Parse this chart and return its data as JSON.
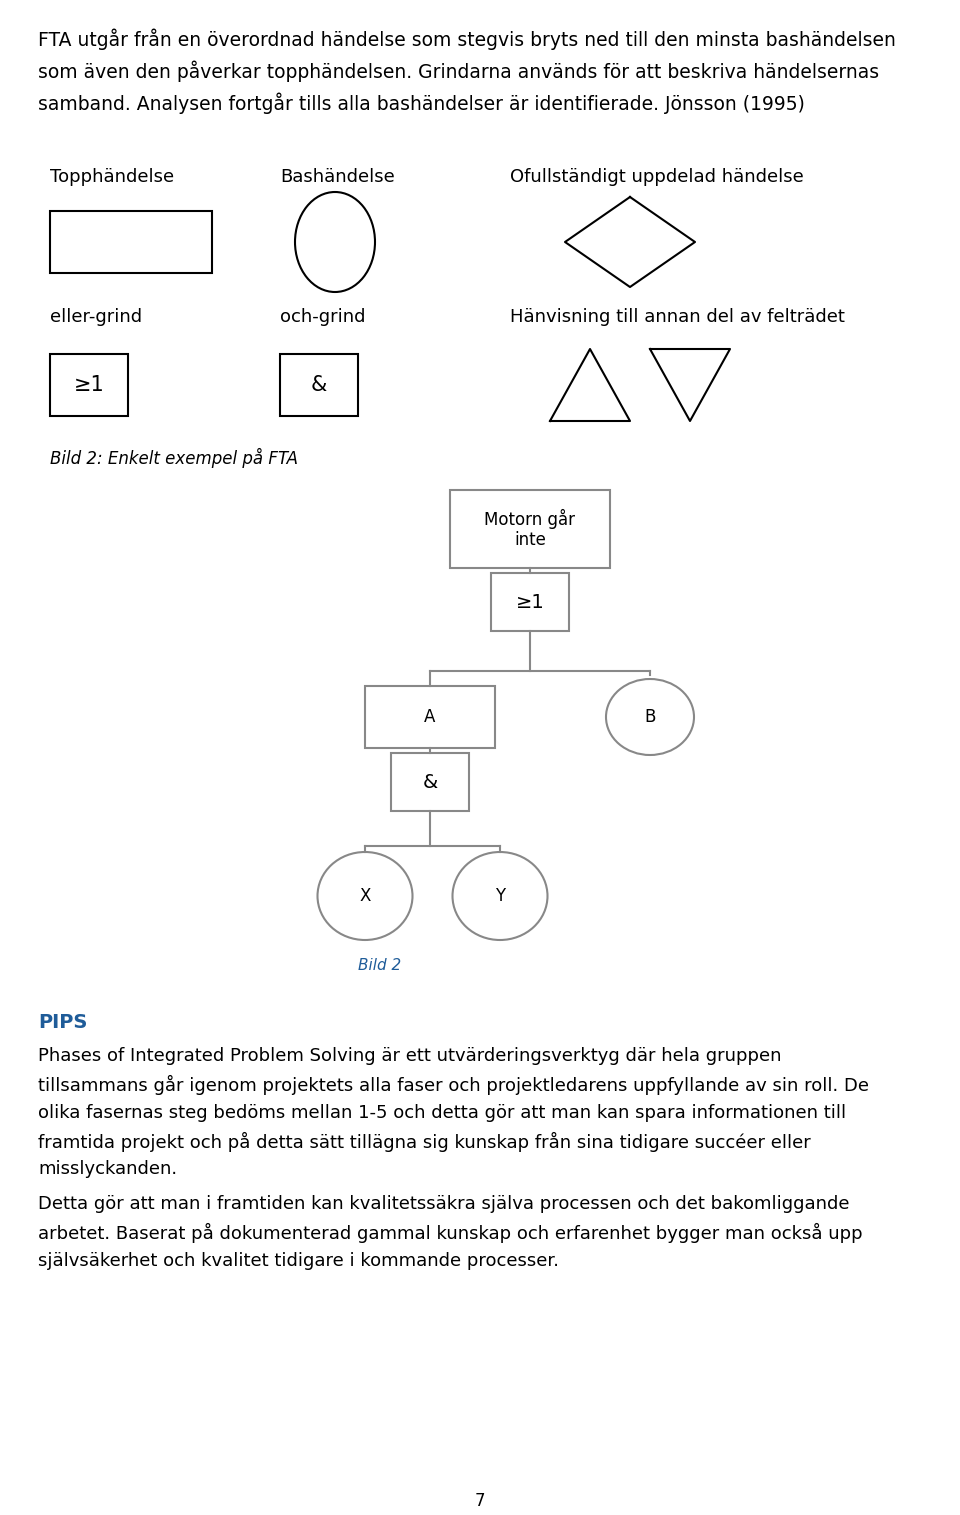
{
  "intro_text_line1": "FTA utgår från en överordnad händelse som stegvis bryts ned till den minsta bashändelsen",
  "intro_text_line2": "som även den påverkar topphändelsen. Grindarna används för att beskriva händelsernas",
  "intro_text_line3": "samband. Analysen fortgår tills alla bashändelser är identifierade. Jönsson (1995)",
  "label_topphändelse": "Topphändelse",
  "label_bashändelse": "Bashändelse",
  "label_ofullständigt": "Ofullständigt uppdelad händelse",
  "label_eller": "eller-grind",
  "label_och": "och-grind",
  "label_hänvisning": "Hänvisning till annan del av felträdet",
  "bild2_caption": "Bild 2: Enkelt exempel på FTA",
  "bild2_label": "Bild 2",
  "tree_top_label": "Motorn går\ninte",
  "tree_or_label": "≥1",
  "tree_and_label": "&",
  "tree_a_label": "A",
  "tree_b_label": "B",
  "tree_x_label": "X",
  "tree_y_label": "Y",
  "pips_title": "PIPS",
  "pips_text1": "Phases of Integrated Problem Solving är ett utvärderingsverktyg där hela gruppen\ntillsammans går igenom projektets alla faser och projektledarens uppfyllande av sin roll. De\nolika fasernas steg bedöms mellan 1-5 och detta gör att man kan spara informationen till\nframtida projekt och på detta sätt tillägna sig kunskap från sina tidigare succéer eller\nmisslyckanden.",
  "pips_text2": "Detta gör att man i framtiden kan kvalitetssäkra själva processen och det bakomliggande\narbetet. Baserat på dokumenterad gammal kunskap och erfarenhet bygger man också upp\nsjälvsäkerhet och kvalitet tidigare i kommande processer.",
  "page_number": "7",
  "text_color": "#000000",
  "pips_color": "#1f5c99",
  "shape_color": "#000000",
  "bild2_color": "#1f5c99",
  "bg_color": "#ffffff",
  "line_color": "#888888"
}
